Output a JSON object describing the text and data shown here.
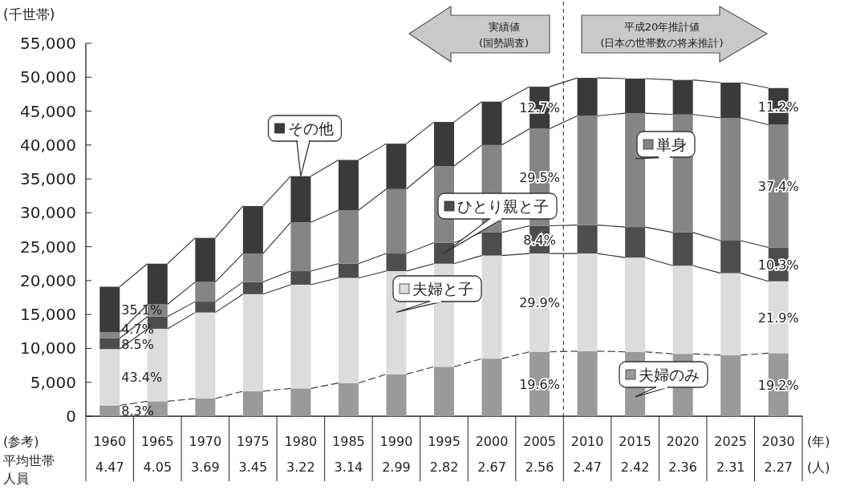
{
  "chart_data": {
    "type": "bar",
    "stacked": true,
    "ylabel": "(千世帯)",
    "xlabel": "(年)",
    "legend": "center",
    "x": [
      1960,
      1965,
      1970,
      1975,
      1980,
      1985,
      1990,
      1995,
      2000,
      2005,
      2010,
      2015,
      2020,
      2025,
      2030
    ],
    "xlim": [
      1957.5,
      2032.5
    ],
    "xticks": [
      1960,
      1965,
      1970,
      1975,
      1980,
      1985,
      1990,
      1995,
      2000,
      2005,
      2010,
      2015,
      2020,
      2025,
      2030
    ],
    "ylim": [
      0,
      55000
    ],
    "yticks": [
      0,
      {
        "value": 5000,
        "label": "5,000"
      },
      {
        "value": 10000,
        "label": "10,000"
      },
      {
        "value": 15000,
        "label": "15,000"
      },
      {
        "value": 20000,
        "label": "20,000"
      },
      {
        "value": 25000,
        "label": "25,000"
      },
      {
        "value": 30000,
        "label": "30,000"
      },
      {
        "value": 35000,
        "label": "35,000"
      },
      {
        "value": 40000,
        "label": "40,000"
      },
      {
        "value": 45000,
        "label": "45,000"
      },
      {
        "value": 50000,
        "label": "50,000"
      },
      {
        "value": 55000,
        "label": "55,000"
      }
    ],
    "series": [
      {
        "name": "夫婦のみ",
        "color": "#9a9a9a",
        "values": [
          1600,
          2200,
          2600,
          3700,
          4100,
          4900,
          6200,
          7300,
          8500,
          9500,
          9600,
          9500,
          9200,
          9000,
          9300
        ]
      },
      {
        "name": "夫婦と子",
        "color": "#dcdcdc",
        "values": [
          8300,
          10700,
          12700,
          14300,
          15300,
          15500,
          15200,
          15200,
          15200,
          14500,
          14400,
          13900,
          13000,
          12100,
          10600
        ]
      },
      {
        "name": "ひとり親と子",
        "color": "#4d4d4d",
        "values": [
          1600,
          1800,
          1600,
          1800,
          2000,
          2100,
          2600,
          3100,
          3400,
          4100,
          4200,
          4500,
          4900,
          4800,
          5000
        ]
      },
      {
        "name": "単身",
        "color": "#858585",
        "values": [
          900,
          1800,
          2900,
          4200,
          7200,
          7900,
          9500,
          11300,
          12900,
          14300,
          16100,
          16800,
          17400,
          18100,
          18100
        ]
      },
      {
        "name": "その他",
        "color": "#3a3a3a",
        "values": [
          6700,
          6000,
          6500,
          7000,
          6800,
          7400,
          6700,
          6500,
          6400,
          6200,
          5600,
          5100,
          5100,
          5200,
          5400
        ]
      }
    ],
    "ref_lines": [
      {
        "axis": "x",
        "value": 2007.5,
        "line_style": "dashed",
        "color": "#444444"
      }
    ],
    "annotations": [
      "(参考)",
      "平均世帯人員",
      "(人)",
      "実績値",
      "(国勢調査)",
      "平成20年推計値",
      "(日本の世帯数の将来推計)",
      "4.47",
      "4.05",
      "3.69",
      "3.45",
      "3.22",
      "3.14",
      "2.99",
      "2.82",
      "2.67",
      "2.56",
      "2.47",
      "2.42",
      "2.36",
      "2.31",
      "2.27",
      "8.3%",
      "43.4%",
      "8.5%",
      "4.7%",
      "35.1%",
      "19.6%",
      "29.9%",
      "8.4%",
      "29.5%",
      "12.7%",
      "19.2%",
      "21.9%",
      "10.3%",
      "37.4%",
      "11.2%"
    ]
  }
}
